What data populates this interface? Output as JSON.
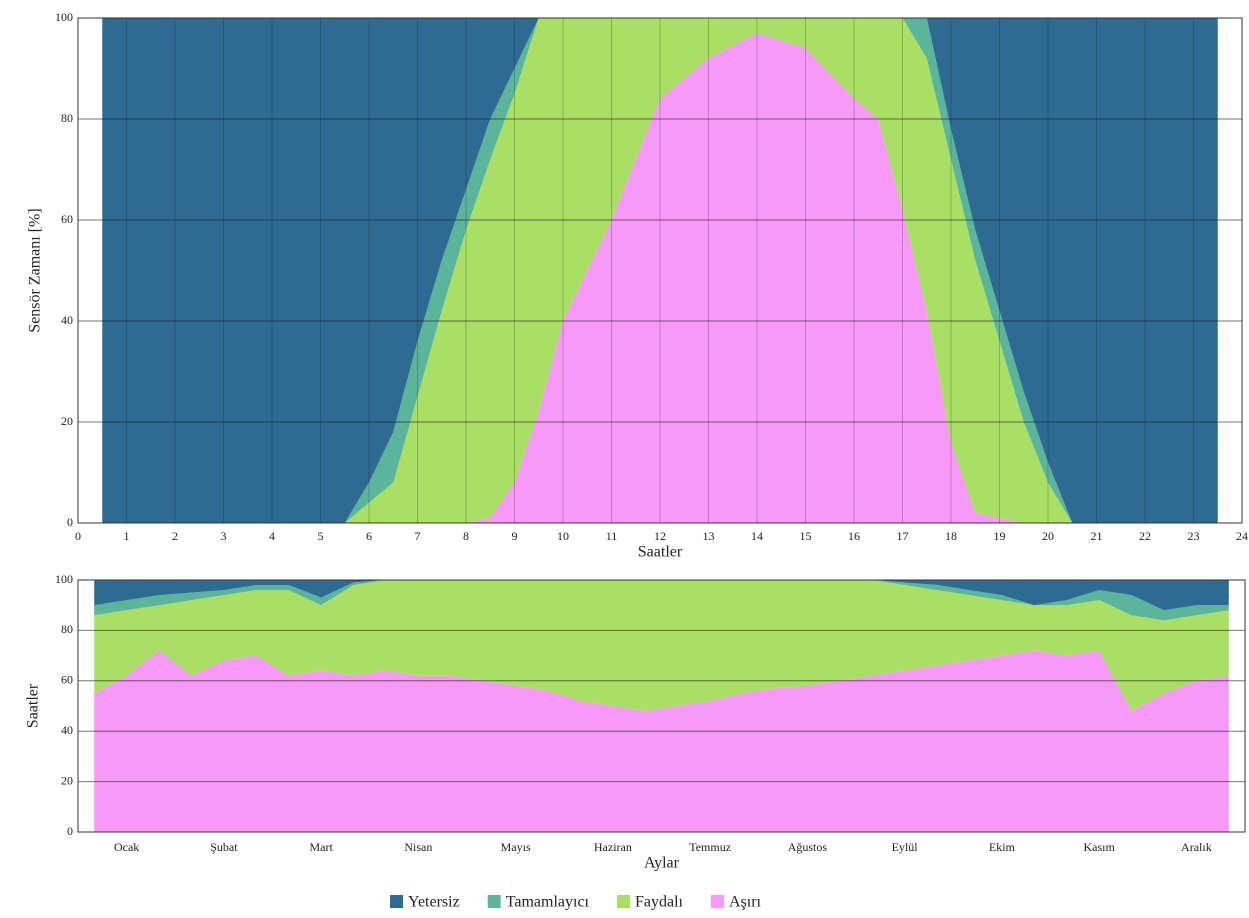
{
  "chart_data": [
    {
      "type": "area",
      "stacked": true,
      "xlabel": "Saatler",
      "ylabel": "Sensör Zamanı [%]",
      "x": [
        0.5,
        1,
        2,
        3,
        4,
        5,
        5.5,
        6,
        6.5,
        7,
        7.5,
        8,
        8.5,
        9,
        9.5,
        10,
        11,
        12,
        13,
        14,
        15,
        16,
        16.5,
        17,
        17.5,
        18,
        18.5,
        19,
        19.5,
        20,
        20.5,
        21,
        22,
        23,
        23.5
      ],
      "xlim": [
        0,
        24
      ],
      "xticks": [
        0,
        1,
        2,
        3,
        4,
        5,
        6,
        7,
        8,
        9,
        10,
        11,
        12,
        13,
        14,
        15,
        16,
        17,
        18,
        19,
        20,
        21,
        22,
        23,
        24
      ],
      "ylim": [
        0,
        100
      ],
      "yticks": [
        0,
        20,
        40,
        60,
        80,
        100
      ],
      "grid": true,
      "series": [
        {
          "name": "Aşırı",
          "color": "#f79af7",
          "values": [
            0,
            0,
            0,
            0,
            0,
            0,
            0,
            0,
            0,
            0,
            0,
            0,
            1,
            8,
            22,
            40,
            60,
            84,
            92,
            97,
            94,
            84,
            80,
            62,
            42,
            16,
            2,
            1,
            0,
            0,
            0,
            0,
            0,
            0,
            0
          ]
        },
        {
          "name": "Faydalı",
          "color": "#a9e063",
          "values": [
            0,
            0,
            0,
            0,
            0,
            0,
            0,
            4,
            8,
            25,
            42,
            58,
            71,
            77,
            78,
            60,
            40,
            16,
            8,
            3,
            6,
            16,
            20,
            38,
            50,
            56,
            50,
            35,
            20,
            8,
            0,
            0,
            0,
            0,
            0
          ]
        },
        {
          "name": "Tamamlayıcı",
          "color": "#5bb59a",
          "values": [
            0,
            0,
            0,
            0,
            0,
            0,
            0,
            4,
            10,
            11,
            10,
            8,
            8,
            5,
            0,
            0,
            0,
            0,
            0,
            0,
            0,
            0,
            0,
            0,
            8,
            6,
            6,
            6,
            6,
            4,
            0,
            0,
            0,
            0,
            0
          ]
        },
        {
          "name": "Yetersiz",
          "color": "#2e6b93",
          "values": [
            100,
            100,
            100,
            100,
            100,
            100,
            100,
            92,
            82,
            64,
            48,
            34,
            20,
            10,
            0,
            0,
            0,
            0,
            0,
            0,
            0,
            0,
            0,
            0,
            0,
            22,
            42,
            58,
            74,
            88,
            100,
            100,
            100,
            100,
            100
          ]
        }
      ]
    },
    {
      "type": "area",
      "stacked": true,
      "xlabel": "Aylar",
      "ylabel": "Saatler",
      "categories": [
        null,
        "Ocak",
        null,
        null,
        "Şubat",
        null,
        null,
        "Mart",
        null,
        null,
        "Nisan",
        null,
        null,
        "Mayıs",
        null,
        null,
        "Haziran",
        null,
        null,
        "Temmuz",
        null,
        null,
        "Ağustos",
        null,
        null,
        "Eylül",
        null,
        null,
        "Ekim",
        null,
        null,
        "Kasım",
        null,
        null,
        "Aralık",
        null
      ],
      "ylim": [
        0,
        100
      ],
      "yticks": [
        0,
        20,
        40,
        60,
        80,
        100
      ],
      "grid": true,
      "series": [
        {
          "color": "#f79af7",
          "values": [
            55,
            62,
            72,
            62,
            68,
            70,
            62,
            64,
            62,
            64,
            62,
            62,
            60,
            58,
            56,
            52,
            50,
            48,
            50,
            52,
            55,
            57,
            58,
            60,
            62,
            64,
            66,
            68,
            70,
            72,
            70,
            72,
            48,
            55,
            60,
            62
          ]
        },
        {
          "color": "#a9e063",
          "values": [
            31,
            26,
            18,
            30,
            26,
            26,
            34,
            26,
            36,
            36,
            38,
            38,
            40,
            42,
            44,
            48,
            50,
            52,
            50,
            48,
            45,
            43,
            42,
            40,
            38,
            34,
            30,
            26,
            22,
            18,
            20,
            20,
            38,
            29,
            26,
            26
          ]
        },
        {
          "color": "#5bb59a",
          "values": [
            4,
            4,
            4,
            3,
            2,
            2,
            2,
            3,
            1,
            0,
            0,
            0,
            0,
            0,
            0,
            0,
            0,
            0,
            0,
            0,
            0,
            0,
            0,
            0,
            0,
            1,
            2,
            2,
            2,
            0,
            2,
            4,
            8,
            4,
            4,
            2
          ]
        },
        {
          "color": "#2e6b93",
          "values": [
            10,
            8,
            6,
            5,
            4,
            2,
            2,
            7,
            1,
            0,
            0,
            0,
            0,
            0,
            0,
            0,
            0,
            0,
            0,
            0,
            0,
            0,
            0,
            0,
            0,
            1,
            2,
            4,
            6,
            10,
            8,
            4,
            6,
            12,
            10,
            10
          ]
        }
      ]
    }
  ]
}
